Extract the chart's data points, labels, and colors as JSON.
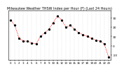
{
  "title": "Milwaukee Weather THSW Index per Hour (F) (Last 24 Hours)",
  "x_values": [
    0,
    1,
    2,
    3,
    4,
    5,
    6,
    7,
    8,
    9,
    10,
    11,
    12,
    13,
    14,
    15,
    16,
    17,
    18,
    19,
    20,
    21,
    22,
    23
  ],
  "y_values": [
    28,
    22,
    8,
    5,
    5,
    3,
    2,
    10,
    14,
    18,
    25,
    32,
    28,
    20,
    22,
    18,
    14,
    12,
    10,
    8,
    6,
    5,
    2,
    -12
  ],
  "line_color": "#ff0000",
  "marker_color": "#000000",
  "bg_color": "#ffffff",
  "grid_color": "#aaaaaa",
  "ylim": [
    -15,
    38
  ],
  "yticks": [
    30,
    20,
    10,
    0,
    -10
  ],
  "ytick_labels": [
    "30",
    "20",
    "10",
    "0",
    "-10"
  ],
  "title_fontsize": 3.5,
  "tick_fontsize": 3.2
}
